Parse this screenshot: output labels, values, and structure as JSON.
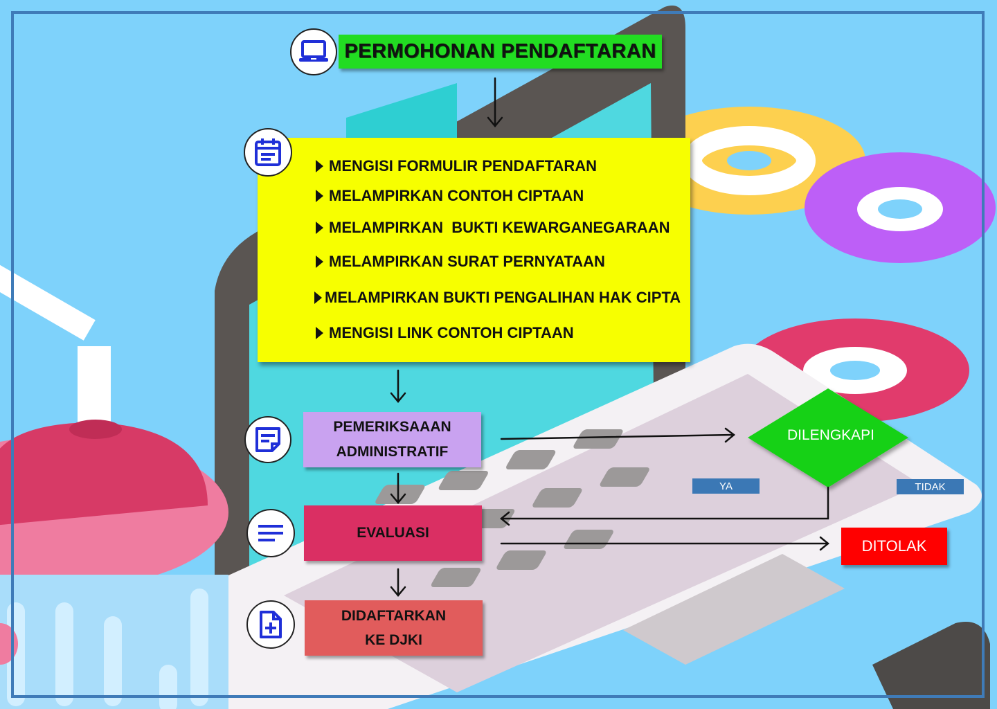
{
  "title": "PERMOHONAN PENDAFTARAN",
  "requirements": [
    "MENGISI FORMULIR PENDAFTARAN",
    "MELAMPIRKAN CONTOH CIPTAAN",
    "MELAMPIRKAN  BUKTI KEWARGANEGARAAN",
    "MELAMPIRKAN SURAT PERNYATAAN",
    "MELAMPIRKAN BUKTI PENGALIHAN HAK CIPTA",
    "MENGISI LINK CONTOH CIPTAAN"
  ],
  "steps": {
    "pemeriksaan_line1": "PEMERIKSAAAN",
    "pemeriksaan_line2": "ADMINISTRATIF",
    "evaluasi": "EVALUASI",
    "didaftarkan_line1": "DIDAFTARKAN",
    "didaftarkan_line2": "KE DJKI",
    "dilengkapi": "DILENGKAPI",
    "ditolak": "DITOLAK"
  },
  "labels": {
    "ya": "YA",
    "tidak": "TIDAK"
  },
  "icons": [
    "laptop-icon",
    "calendar-icon",
    "note-icon",
    "lines-icon",
    "file-plus-icon"
  ],
  "colors": {
    "background": "#7ed2fb",
    "title_box": "#22dc22",
    "requirements_box": "#f7ff00",
    "pemeriksaan_box": "#c9a2f0",
    "evaluasi_box": "#da2f63",
    "didaftarkan_box": "#e15c5c",
    "dilengkapi_diamond": "#17d117",
    "ditolak_box": "#ff0000",
    "tag": "#3b78b5",
    "icon": "#1f2fd8"
  }
}
